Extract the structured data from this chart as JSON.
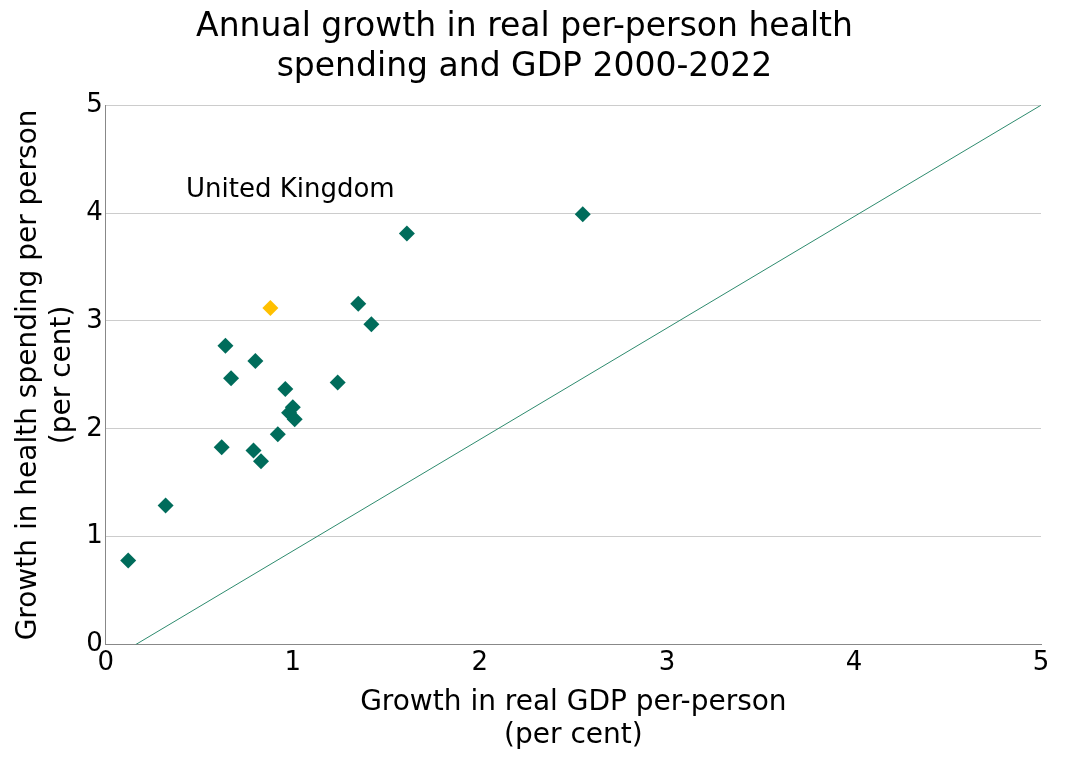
{
  "chart_data": {
    "type": "scatter",
    "title": "Annual growth in real per-person health spending and GDP 2000-2022",
    "xlabel": "Growth in real GDP per-person (per cent)",
    "ylabel": "Growth in health spending per person (per cent)",
    "xlim": [
      0,
      5
    ],
    "xticks": [
      0,
      1,
      2,
      3,
      4,
      5
    ],
    "ylim": [
      0,
      5
    ],
    "yticks": [
      0,
      1,
      2,
      3,
      4,
      5
    ],
    "grid": "y",
    "marker": "diamond",
    "legend": false,
    "series": [
      {
        "color": "#006c5b",
        "x": [
          0.12,
          0.32,
          0.62,
          0.79,
          0.83,
          0.64,
          0.67,
          0.8,
          0.92,
          0.96,
          0.98,
          1.0,
          1.01,
          1.24,
          1.35,
          1.42,
          1.61,
          2.55
        ],
        "values": [
          0.78,
          1.29,
          1.83,
          1.8,
          1.7,
          2.77,
          2.47,
          2.63,
          1.95,
          2.37,
          2.15,
          2.2,
          2.09,
          2.43,
          3.16,
          2.97,
          3.81,
          3.99
        ]
      },
      {
        "name": "United Kingdom",
        "color": "#ffc000",
        "x": [
          0.88
        ],
        "values": [
          3.12
        ]
      },
      {
        "type": "line",
        "color": "#2e8b6e",
        "marker": "none",
        "x": [
          0.16,
          5
        ],
        "values": [
          0,
          5
        ]
      }
    ]
  }
}
